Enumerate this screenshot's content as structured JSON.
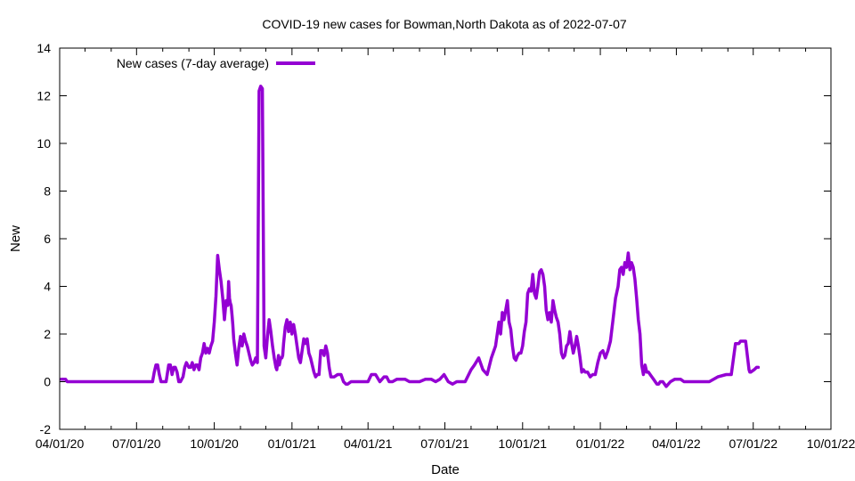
{
  "chart_data": {
    "type": "line",
    "title": "COVID-19 new cases for Bowman,North Dakota as of 2022-07-07",
    "xlabel": "Date",
    "ylabel": "New",
    "xlim": [
      "2020-04-01",
      "2022-10-01"
    ],
    "ylim": [
      -2,
      14
    ],
    "x_tick_labels": [
      "04/01/20",
      "07/01/20",
      "10/01/20",
      "01/01/21",
      "04/01/21",
      "07/01/21",
      "10/01/21",
      "01/01/22",
      "04/01/22",
      "07/01/22",
      "10/01/22"
    ],
    "y_ticks": [
      -2,
      0,
      2,
      4,
      6,
      8,
      10,
      12,
      14
    ],
    "grid": false,
    "legend_position": "top-left",
    "series_color": "#9400d3",
    "series": [
      {
        "name": "New cases (7-day average)",
        "x": [
          "2020-04-03",
          "2020-04-08",
          "2020-04-10",
          "2020-05-15",
          "2020-06-20",
          "2020-07-20",
          "2020-07-22",
          "2020-07-24",
          "2020-07-26",
          "2020-07-28",
          "2020-07-30",
          "2020-08-02",
          "2020-08-05",
          "2020-08-08",
          "2020-08-10",
          "2020-08-12",
          "2020-08-14",
          "2020-08-16",
          "2020-08-18",
          "2020-08-20",
          "2020-08-22",
          "2020-08-25",
          "2020-08-27",
          "2020-08-29",
          "2020-09-01",
          "2020-09-03",
          "2020-09-05",
          "2020-09-07",
          "2020-09-09",
          "2020-09-11",
          "2020-09-13",
          "2020-09-15",
          "2020-09-17",
          "2020-09-19",
          "2020-09-21",
          "2020-09-23",
          "2020-09-25",
          "2020-09-27",
          "2020-09-29",
          "2020-10-01",
          "2020-10-03",
          "2020-10-05",
          "2020-10-07",
          "2020-10-09",
          "2020-10-11",
          "2020-10-13",
          "2020-10-15",
          "2020-10-16",
          "2020-10-17",
          "2020-10-18",
          "2020-10-19",
          "2020-10-20",
          "2020-10-21",
          "2020-10-22",
          "2020-10-23",
          "2020-10-24",
          "2020-10-26",
          "2020-10-28",
          "2020-10-30",
          "2020-11-01",
          "2020-11-03",
          "2020-11-05",
          "2020-11-07",
          "2020-11-09",
          "2020-11-11",
          "2020-11-13",
          "2020-11-15",
          "2020-11-17",
          "2020-11-19",
          "2020-11-21",
          "2020-11-23",
          "2020-11-25",
          "2020-11-27",
          "2020-11-29",
          "2020-12-01",
          "2020-12-03",
          "2020-12-05",
          "2020-12-07",
          "2020-12-09",
          "2020-12-11",
          "2020-12-13",
          "2020-12-14",
          "2020-12-15",
          "2020-12-16",
          "2020-12-17",
          "2020-12-18",
          "2020-12-19",
          "2020-12-20",
          "2020-12-21",
          "2020-12-22",
          "2020-12-24",
          "2020-12-26",
          "2020-12-28",
          "2020-12-30",
          "2021-01-01",
          "2021-01-03",
          "2021-01-05",
          "2021-01-07",
          "2021-01-09",
          "2021-01-11",
          "2021-01-13",
          "2021-01-15",
          "2021-01-17",
          "2021-01-19",
          "2021-01-21",
          "2021-01-23",
          "2021-01-25",
          "2021-01-27",
          "2021-01-29",
          "2021-01-31",
          "2021-02-02",
          "2021-02-04",
          "2021-02-06",
          "2021-02-08",
          "2021-02-10",
          "2021-02-12",
          "2021-02-14",
          "2021-02-16",
          "2021-02-18",
          "2021-02-20",
          "2021-02-24",
          "2021-02-28",
          "2021-03-03",
          "2021-03-06",
          "2021-03-08",
          "2021-03-12",
          "2021-03-16",
          "2021-03-20",
          "2021-03-24",
          "2021-03-28",
          "2021-04-01",
          "2021-04-05",
          "2021-04-10",
          "2021-04-15",
          "2021-04-20",
          "2021-04-23",
          "2021-04-26",
          "2021-04-30",
          "2021-05-05",
          "2021-05-10",
          "2021-05-15",
          "2021-05-20",
          "2021-05-25",
          "2021-06-01",
          "2021-06-08",
          "2021-06-15",
          "2021-06-20",
          "2021-06-25",
          "2021-06-30",
          "2021-07-05",
          "2021-07-10",
          "2021-07-15",
          "2021-07-20",
          "2021-07-25",
          "2021-08-01",
          "2021-08-05",
          "2021-08-10",
          "2021-08-15",
          "2021-08-20",
          "2021-08-25",
          "2021-08-30",
          "2021-09-01",
          "2021-09-03",
          "2021-09-05",
          "2021-09-07",
          "2021-09-09",
          "2021-09-11",
          "2021-09-13",
          "2021-09-15",
          "2021-09-17",
          "2021-09-19",
          "2021-09-21",
          "2021-09-23",
          "2021-09-25",
          "2021-09-27",
          "2021-09-29",
          "2021-10-01",
          "2021-10-03",
          "2021-10-05",
          "2021-10-07",
          "2021-10-09",
          "2021-10-11",
          "2021-10-13",
          "2021-10-15",
          "2021-10-17",
          "2021-10-19",
          "2021-10-21",
          "2021-10-23",
          "2021-10-25",
          "2021-10-27",
          "2021-10-29",
          "2021-10-31",
          "2021-11-02",
          "2021-11-04",
          "2021-11-06",
          "2021-11-08",
          "2021-11-10",
          "2021-11-12",
          "2021-11-14",
          "2021-11-16",
          "2021-11-18",
          "2021-11-20",
          "2021-11-22",
          "2021-11-24",
          "2021-11-26",
          "2021-11-28",
          "2021-11-30",
          "2021-12-02",
          "2021-12-04",
          "2021-12-06",
          "2021-12-08",
          "2021-12-10",
          "2021-12-12",
          "2021-12-14",
          "2021-12-17",
          "2021-12-20",
          "2021-12-23",
          "2021-12-26",
          "2021-12-29",
          "2022-01-01",
          "2022-01-04",
          "2022-01-07",
          "2022-01-10",
          "2022-01-13",
          "2022-01-16",
          "2022-01-19",
          "2022-01-22",
          "2022-01-24",
          "2022-01-26",
          "2022-01-28",
          "2022-01-30",
          "2022-02-01",
          "2022-02-03",
          "2022-02-05",
          "2022-02-07",
          "2022-02-09",
          "2022-02-11",
          "2022-02-13",
          "2022-02-15",
          "2022-02-17",
          "2022-02-19",
          "2022-02-21",
          "2022-02-23",
          "2022-02-25",
          "2022-02-27",
          "2022-03-01",
          "2022-03-03",
          "2022-03-05",
          "2022-03-07",
          "2022-03-09",
          "2022-03-11",
          "2022-03-13",
          "2022-03-16",
          "2022-03-20",
          "2022-03-25",
          "2022-03-30",
          "2022-04-03",
          "2022-04-06",
          "2022-04-10",
          "2022-04-15",
          "2022-04-20",
          "2022-05-01",
          "2022-05-10",
          "2022-05-20",
          "2022-05-30",
          "2022-06-05",
          "2022-06-10",
          "2022-06-12",
          "2022-06-14",
          "2022-06-16",
          "2022-06-18",
          "2022-06-22",
          "2022-06-26",
          "2022-06-27",
          "2022-06-28",
          "2022-07-02",
          "2022-07-05",
          "2022-07-07"
        ],
        "y": [
          0.1,
          0.1,
          0,
          0,
          0,
          0,
          0.4,
          0.7,
          0.7,
          0.3,
          0,
          0,
          0,
          0.7,
          0.7,
          0.3,
          0.6,
          0.6,
          0.4,
          0,
          0,
          0.2,
          0.6,
          0.8,
          0.6,
          0.6,
          0.8,
          0.5,
          0.7,
          0.7,
          0.5,
          1.0,
          1.2,
          1.6,
          1.2,
          1.4,
          1.2,
          1.5,
          1.7,
          2.5,
          3.6,
          5.3,
          4.7,
          4.2,
          3.5,
          2.6,
          3.4,
          3.3,
          3.2,
          4.2,
          3.5,
          3.3,
          3.2,
          2.8,
          2.4,
          1.8,
          1.2,
          0.7,
          1.4,
          1.9,
          1.5,
          2.0,
          1.7,
          1.5,
          1.2,
          0.9,
          0.7,
          0.8,
          1.0,
          0.8,
          12.2,
          12.4,
          12.3,
          1.5,
          1.0,
          1.9,
          2.6,
          2.1,
          1.5,
          1.0,
          0.6,
          0.5,
          0.8,
          1.1,
          0.7,
          0.9,
          1.0,
          1.0,
          1.1,
          1.6,
          2.3,
          2.6,
          2.1,
          2.5,
          2.0,
          2.4,
          2.0,
          1.5,
          1.0,
          0.8,
          1.3,
          1.8,
          1.6,
          1.8,
          1.2,
          1.0,
          0.7,
          0.4,
          0.2,
          0.3,
          0.3,
          1.3,
          1.3,
          1.1,
          1.5,
          1.2,
          0.6,
          0.2,
          0.2,
          0.2,
          0.3,
          0.3,
          0,
          -0.1,
          -0.1,
          0,
          0,
          0,
          0,
          0,
          0,
          0.3,
          0.3,
          0,
          0.2,
          0.2,
          0,
          0,
          0.1,
          0.1,
          0.1,
          0,
          0,
          0,
          0.1,
          0.1,
          0,
          0.1,
          0.3,
          0,
          -0.1,
          0,
          0,
          0,
          0.5,
          0.7,
          1.0,
          0.5,
          0.3,
          1.0,
          1.5,
          2.0,
          2.5,
          2.0,
          2.9,
          2.6,
          3.0,
          3.4,
          2.5,
          2.2,
          1.5,
          1.0,
          0.9,
          1.1,
          1.2,
          1.2,
          1.5,
          2.1,
          2.5,
          3.7,
          3.9,
          3.8,
          4.5,
          3.7,
          3.5,
          4.0,
          4.6,
          4.7,
          4.5,
          4.0,
          3.0,
          2.6,
          2.9,
          2.5,
          3.4,
          3.0,
          2.7,
          2.5,
          2.0,
          1.2,
          1.0,
          1.1,
          1.5,
          1.6,
          2.1,
          1.6,
          1.2,
          1.5,
          1.9,
          1.5,
          1.0,
          0.4,
          0.5,
          0.4,
          0.4,
          0.2,
          0.3,
          0.3,
          0.8,
          1.2,
          1.3,
          1.0,
          1.3,
          1.7,
          2.6,
          3.5,
          4.0,
          4.7,
          4.8,
          4.5,
          5.0,
          4.8,
          5.4,
          4.7,
          5.0,
          4.8,
          4.3,
          3.5,
          2.6,
          2.0,
          0.7,
          0.3,
          0.7,
          0.4,
          0.4,
          0.3,
          0.2,
          0.1,
          0,
          -0.1,
          -0.1,
          0,
          0,
          -0.2,
          0,
          0.1,
          0.1,
          0.1,
          0,
          0,
          0,
          0,
          0,
          0.2,
          0.3,
          0.3,
          1.6,
          1.6,
          1.6,
          1.7,
          1.7,
          1.7,
          0.5,
          0.4,
          0.4,
          0.5,
          0.6,
          0.6
        ]
      }
    ]
  }
}
